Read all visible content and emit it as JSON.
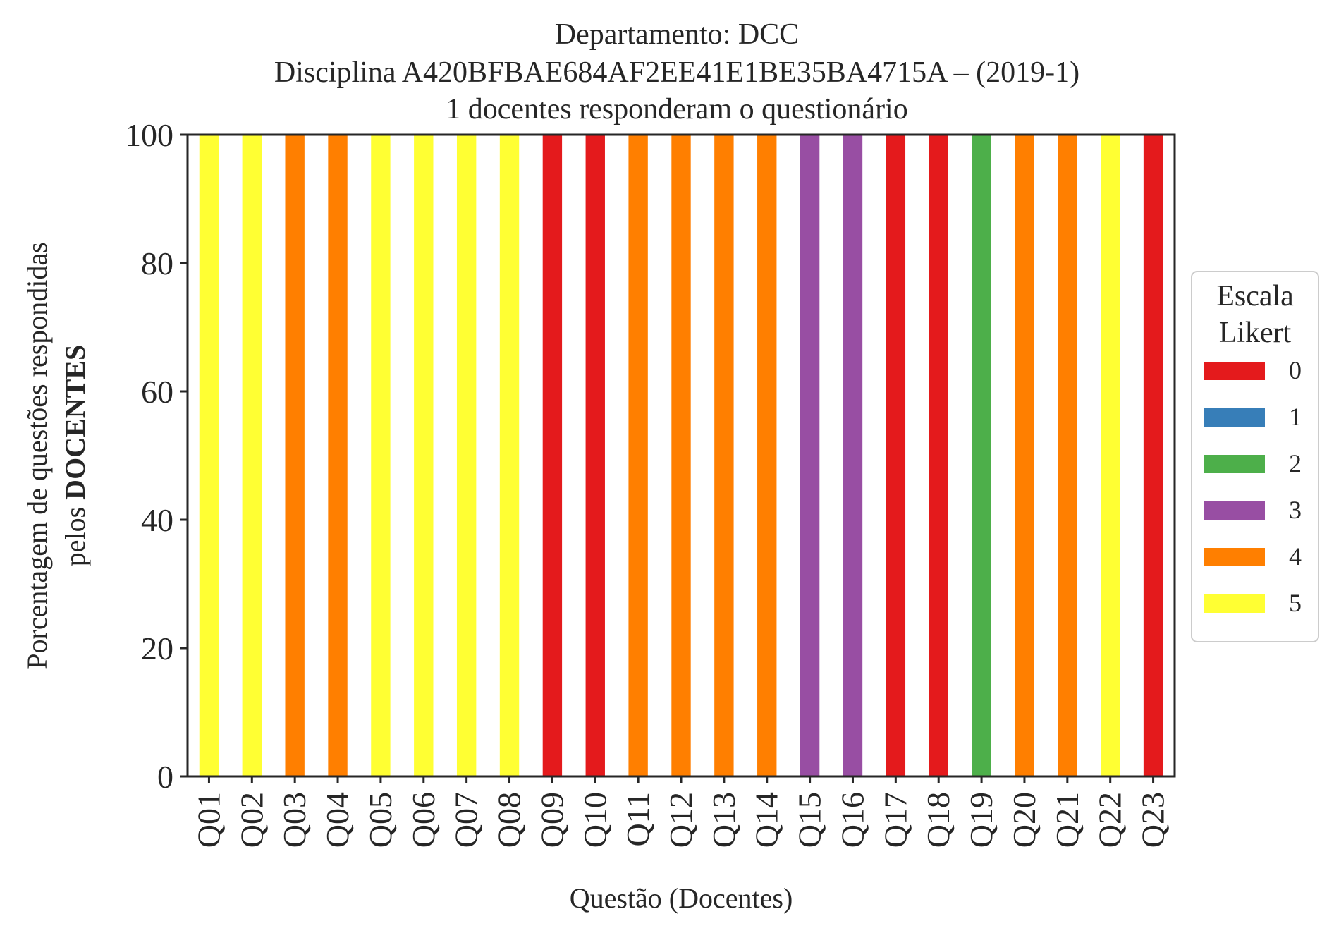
{
  "chart_data": {
    "type": "bar",
    "stacked": true,
    "title_lines": [
      "Departamento: DCC",
      "Disciplina A420BFBAE684AF2EE41E1BE35BA4715A – (2019-1)",
      "1 docentes responderam o questionário"
    ],
    "xlabel": "Questão (Docentes)",
    "ylabel_line1": "Porcentagem de questões respondidas",
    "ylabel_line2_prefix": "pelos ",
    "ylabel_line2_bold": "DOCENTES",
    "ylim": [
      0,
      100
    ],
    "yticks": [
      "0",
      "20",
      "40",
      "60",
      "80",
      "100"
    ],
    "categories": [
      "Q01",
      "Q02",
      "Q03",
      "Q04",
      "Q05",
      "Q06",
      "Q07",
      "Q08",
      "Q09",
      "Q10",
      "Q11",
      "Q12",
      "Q13",
      "Q14",
      "Q15",
      "Q16",
      "Q17",
      "Q18",
      "Q19",
      "Q20",
      "Q21",
      "Q22",
      "Q23"
    ],
    "series": [
      {
        "name": "0",
        "color": "#e41a1c",
        "values": [
          0,
          0,
          0,
          0,
          0,
          0,
          0,
          0,
          100,
          100,
          0,
          0,
          0,
          0,
          0,
          0,
          100,
          100,
          0,
          0,
          0,
          0,
          100
        ]
      },
      {
        "name": "1",
        "color": "#377eb8",
        "values": [
          0,
          0,
          0,
          0,
          0,
          0,
          0,
          0,
          0,
          0,
          0,
          0,
          0,
          0,
          0,
          0,
          0,
          0,
          0,
          0,
          0,
          0,
          0
        ]
      },
      {
        "name": "2",
        "color": "#4daf4a",
        "values": [
          0,
          0,
          0,
          0,
          0,
          0,
          0,
          0,
          0,
          0,
          0,
          0,
          0,
          0,
          0,
          0,
          0,
          0,
          100,
          0,
          0,
          0,
          0
        ]
      },
      {
        "name": "3",
        "color": "#984ea3",
        "values": [
          0,
          0,
          0,
          0,
          0,
          0,
          0,
          0,
          0,
          0,
          0,
          0,
          0,
          0,
          100,
          100,
          0,
          0,
          0,
          0,
          0,
          0,
          0
        ]
      },
      {
        "name": "4",
        "color": "#ff7f00",
        "values": [
          0,
          0,
          100,
          100,
          0,
          0,
          0,
          0,
          0,
          0,
          100,
          100,
          100,
          100,
          0,
          0,
          0,
          0,
          0,
          100,
          100,
          0,
          0
        ]
      },
      {
        "name": "5",
        "color": "#ffff33",
        "values": [
          100,
          100,
          0,
          0,
          100,
          100,
          100,
          100,
          0,
          0,
          0,
          0,
          0,
          0,
          0,
          0,
          0,
          0,
          0,
          0,
          0,
          100,
          0
        ]
      }
    ],
    "legend": {
      "title_lines": [
        "Escala",
        "Likert"
      ],
      "placement": "center-right-outside"
    },
    "grid": false
  }
}
